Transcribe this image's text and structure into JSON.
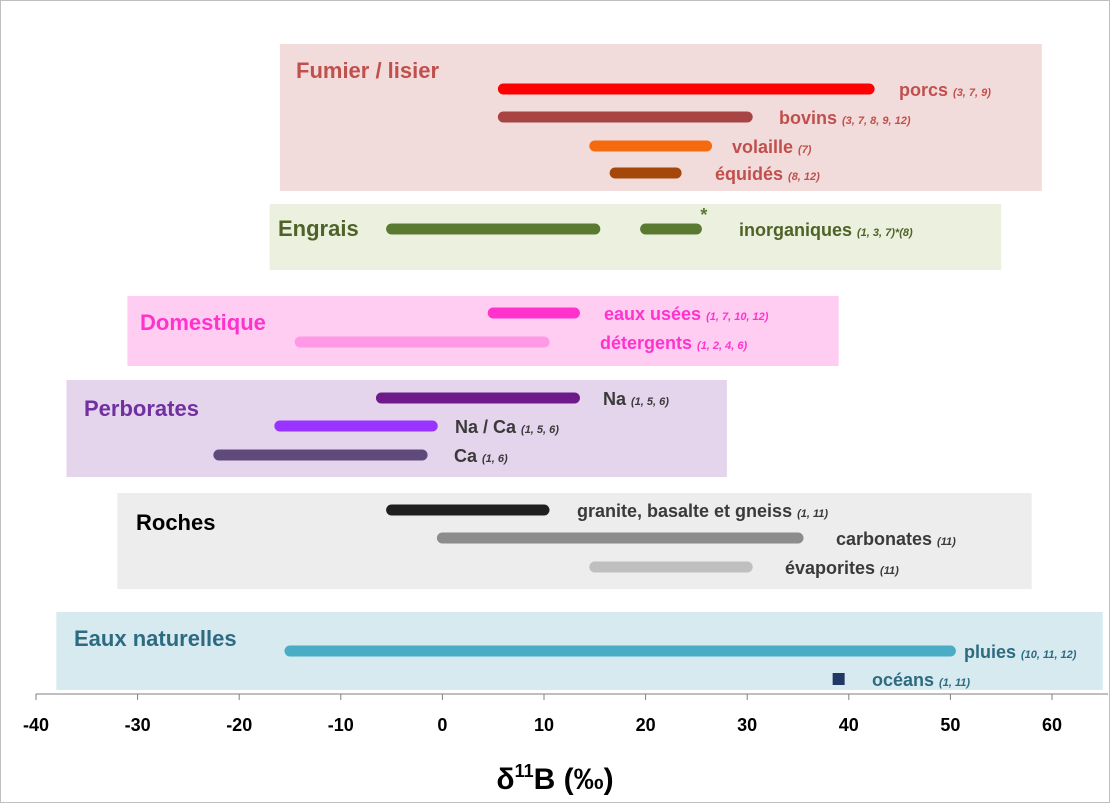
{
  "chart_data": {
    "type": "range-bar",
    "xlabel": "δ11B (‰)",
    "xlabel_main": "δ",
    "xlabel_sup": "11",
    "xlabel_tail": "B (‰)",
    "xlim": [
      -40,
      65
    ],
    "xticks": [
      -40,
      -30,
      -20,
      -10,
      0,
      10,
      20,
      30,
      40,
      50,
      60
    ],
    "groups": [
      {
        "name": "Fumier / lisier",
        "color": "#c0504d",
        "bg": "#f2dcdb",
        "range": [
          -16,
          59
        ],
        "series": [
          {
            "name": "porcs",
            "refs": "(3, 7, 9)",
            "range": [
              6,
              42
            ],
            "color": "#ff0000"
          },
          {
            "name": "bovins",
            "refs": "(3, 7, 8, 9, 12)",
            "range": [
              6,
              30
            ],
            "color": "#a84444"
          },
          {
            "name": "volaille",
            "refs": "(7)",
            "range": [
              15,
              26
            ],
            "color": "#f56a0f"
          },
          {
            "name": "équidés",
            "refs": "(8, 12)",
            "range": [
              17,
              23
            ],
            "color": "#a5460a"
          }
        ]
      },
      {
        "name": "Engrais",
        "color": "#4f6228",
        "bg": "#ebf1de",
        "range": [
          -17,
          55
        ],
        "series": [
          {
            "name": "inorganiques",
            "refs": "(1, 3, 7)*(8)",
            "range": [
              -5,
              15
            ],
            "range2": [
              20,
              25
            ],
            "asterisk": "*",
            "color": "#5a7a32"
          }
        ]
      },
      {
        "name": "Domestique",
        "color": "#ff33cc",
        "bg": "#ffccf2",
        "range": [
          -31,
          39
        ],
        "series": [
          {
            "name": "eaux usées",
            "refs": "(1, 7, 10, 12)",
            "range": [
              5,
              13
            ],
            "color": "#ff33cc"
          },
          {
            "name": "détergents",
            "refs": "(1, 2, 4, 6)",
            "range": [
              -14,
              10
            ],
            "color": "#ff99e6"
          }
        ]
      },
      {
        "name": "Perborates",
        "color": "#7030a0",
        "bg": "#e4d4ec",
        "range": [
          -37,
          28
        ],
        "series": [
          {
            "name": "Na",
            "refs": "(1, 5, 6)",
            "range": [
              -6,
              13
            ],
            "color": "#6e1a8a"
          },
          {
            "name": "Na / Ca",
            "refs": "(1, 5, 6)",
            "range": [
              -16,
              -1
            ],
            "color": "#9933ff"
          },
          {
            "name": "Ca",
            "refs": "(1, 6)",
            "range": [
              -22,
              -2
            ],
            "color": "#604a7b"
          }
        ]
      },
      {
        "name": "Roches",
        "color": "#000000",
        "bg": "#ededed",
        "range": [
          -32,
          58
        ],
        "series": [
          {
            "name": "granite, basalte et gneiss",
            "refs": "(1, 11)",
            "range": [
              -5,
              10
            ],
            "color": "#1f1f1f"
          },
          {
            "name": "carbonates",
            "refs": "(11)",
            "range": [
              0,
              35
            ],
            "color": "#8c8c8c"
          },
          {
            "name": "évaporites",
            "refs": "(11)",
            "range": [
              15,
              30
            ],
            "color": "#bfbfbf"
          }
        ]
      },
      {
        "name": "Eaux naturelles",
        "color": "#2e6b80",
        "bg": "#d6eaf0",
        "range": [
          -38,
          65
        ],
        "series": [
          {
            "name": "pluies",
            "refs": "(10, 11, 12)",
            "range": [
              -15,
              50
            ],
            "color": "#4bacc6"
          },
          {
            "name": "océans",
            "refs": "(1, 11)",
            "point": 39,
            "color": "#1f3864"
          }
        ]
      }
    ]
  }
}
